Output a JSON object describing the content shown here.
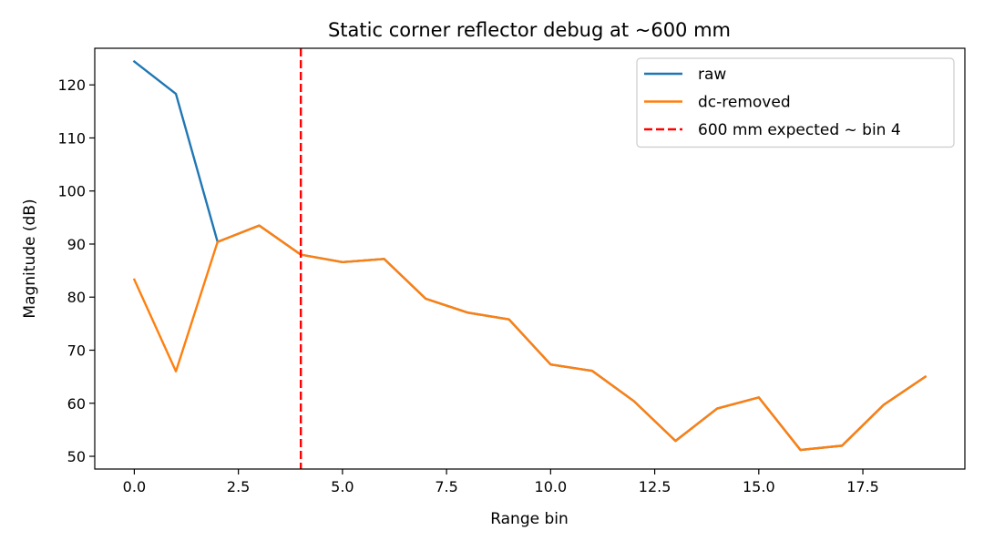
{
  "chart_data": {
    "type": "line",
    "title": "Static corner reflector debug at ~600 mm",
    "xlabel": "Range bin",
    "ylabel": "Magnitude (dB)",
    "xlim": [
      -0.95,
      19.95
    ],
    "ylim": [
      47.6,
      126.9
    ],
    "x_ticks": [
      0.0,
      2.5,
      5.0,
      7.5,
      10.0,
      12.5,
      15.0,
      17.5
    ],
    "x_tick_labels": [
      "0.0",
      "2.5",
      "5.0",
      "7.5",
      "10.0",
      "12.5",
      "15.0",
      "17.5"
    ],
    "y_ticks": [
      50,
      60,
      70,
      80,
      90,
      100,
      110,
      120
    ],
    "y_tick_labels": [
      "50",
      "60",
      "70",
      "80",
      "90",
      "100",
      "110",
      "120"
    ],
    "grid": false,
    "legend_position": "top-right",
    "x": [
      0,
      1,
      2,
      3,
      4,
      5,
      6,
      7,
      8,
      9,
      10,
      11,
      12,
      13,
      14,
      15,
      16,
      17,
      18,
      19
    ],
    "series": [
      {
        "name": "raw",
        "color": "#1f77b4",
        "style": "solid",
        "values": [
          124.4,
          118.3,
          90.4,
          93.5,
          88.0,
          86.6,
          87.2,
          79.7,
          77.1,
          75.8,
          67.3,
          66.1,
          60.4,
          52.9,
          59.0,
          61.1,
          51.2,
          52.0,
          59.7,
          65.0
        ]
      },
      {
        "name": "dc-removed",
        "color": "#ff7f0e",
        "style": "solid",
        "values": [
          83.3,
          66.0,
          90.4,
          93.5,
          88.0,
          86.6,
          87.2,
          79.7,
          77.1,
          75.8,
          67.3,
          66.1,
          60.4,
          52.9,
          59.0,
          61.1,
          51.2,
          52.0,
          59.7,
          65.0
        ]
      }
    ],
    "vlines": [
      {
        "name": "600 mm expected ~ bin 4",
        "x": 4,
        "color": "#ff0000",
        "style": "dashed"
      }
    ]
  }
}
